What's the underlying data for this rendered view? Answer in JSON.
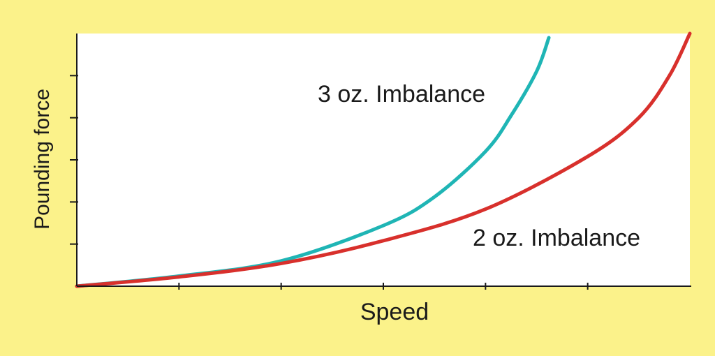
{
  "chart_data": {
    "type": "line",
    "xlabel": "Speed",
    "ylabel": "Pounding force",
    "xlim": [
      0,
      6
    ],
    "ylim": [
      0,
      6
    ],
    "x_ticks": [
      1,
      2,
      3,
      4,
      5
    ],
    "y_ticks": [
      1,
      2,
      3,
      4,
      5
    ],
    "grid": false,
    "legend": "none",
    "series": [
      {
        "name": "3 oz. Imbalance",
        "color": "#1fb5b5",
        "x": [
          0,
          1,
          2,
          3,
          3.5,
          4,
          4.25,
          4.5,
          4.62
        ],
        "y": [
          0,
          0.24,
          0.6,
          1.44,
          2.12,
          3.2,
          4.05,
          5.1,
          5.9
        ]
      },
      {
        "name": "2 oz. Imbalance",
        "color": "#d8302c",
        "x": [
          0,
          1,
          2,
          3,
          4,
          5,
          5.5,
          5.8,
          6
        ],
        "y": [
          0,
          0.22,
          0.54,
          1.08,
          1.83,
          3.08,
          4.0,
          5.0,
          6.0
        ]
      }
    ],
    "annotations": [
      {
        "text": "3 oz. Imbalance",
        "series": 0
      },
      {
        "text": "2 oz. Imbalance",
        "series": 1
      }
    ]
  }
}
